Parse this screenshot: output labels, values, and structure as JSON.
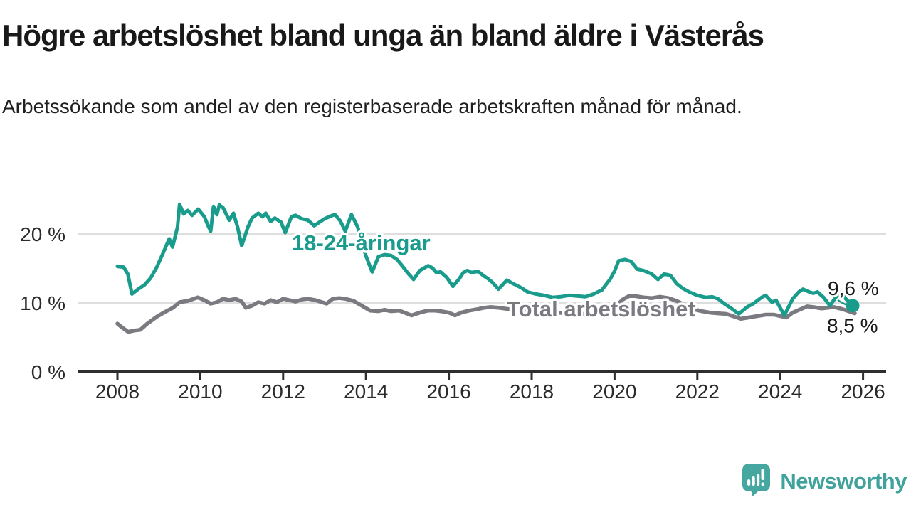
{
  "header": {
    "title": "Högre arbetslöshet bland unga än bland äldre i Västerås",
    "subtitle": "Arbetssökande som andel av den registerbaserade arbetskraften månad för månad."
  },
  "footer": {
    "brand": "Newsworthy"
  },
  "chart_data": {
    "type": "line",
    "title": "Högre arbetslöshet bland unga än bland äldre i Västerås",
    "subtitle": "Arbetssökande som andel av den registerbaserade arbetskraften månad för månad.",
    "unit": "%",
    "grid": "horizontal",
    "legend_position": "inline",
    "xlim": [
      2007.05,
      2026.55
    ],
    "ylim": [
      0,
      26
    ],
    "x_ticks": [
      "2008",
      "2010",
      "2012",
      "2014",
      "2016",
      "2018",
      "2020",
      "2022",
      "2024",
      "2026"
    ],
    "x_tick_values": [
      2008,
      2010,
      2012,
      2014,
      2016,
      2018,
      2020,
      2022,
      2024,
      2026
    ],
    "y_ticks": [
      {
        "value": 0,
        "label": "0 %"
      },
      {
        "value": 10,
        "label": "10 %"
      },
      {
        "value": 20,
        "label": "20 %"
      }
    ],
    "colors": {
      "youth": "#1a9c8c",
      "total": "#7b7a80",
      "grid": "#dedede",
      "axis": "#2e2e2e"
    },
    "series": [
      {
        "id": "youth",
        "name": "18-24-åringar",
        "color": "#1a9c8c",
        "end_label": "9,6 %",
        "end_dot": true,
        "points": [
          [
            2008.0,
            15.3
          ],
          [
            2008.15,
            15.2
          ],
          [
            2008.25,
            14.2
          ],
          [
            2008.35,
            11.3
          ],
          [
            2008.5,
            12.0
          ],
          [
            2008.65,
            12.6
          ],
          [
            2008.8,
            13.6
          ],
          [
            2008.95,
            15.2
          ],
          [
            2009.1,
            17.2
          ],
          [
            2009.25,
            19.3
          ],
          [
            2009.33,
            18.1
          ],
          [
            2009.45,
            21.0
          ],
          [
            2009.5,
            24.3
          ],
          [
            2009.6,
            22.9
          ],
          [
            2009.7,
            23.4
          ],
          [
            2009.8,
            22.7
          ],
          [
            2009.95,
            23.6
          ],
          [
            2010.1,
            22.5
          ],
          [
            2010.18,
            21.3
          ],
          [
            2010.25,
            20.4
          ],
          [
            2010.32,
            24.0
          ],
          [
            2010.4,
            22.8
          ],
          [
            2010.46,
            24.2
          ],
          [
            2010.55,
            23.8
          ],
          [
            2010.7,
            22.0
          ],
          [
            2010.8,
            23.0
          ],
          [
            2010.9,
            21.0
          ],
          [
            2011.0,
            18.3
          ],
          [
            2011.15,
            21.0
          ],
          [
            2011.25,
            22.3
          ],
          [
            2011.4,
            23.0
          ],
          [
            2011.5,
            22.5
          ],
          [
            2011.58,
            23.0
          ],
          [
            2011.7,
            21.8
          ],
          [
            2011.8,
            22.3
          ],
          [
            2011.95,
            21.7
          ],
          [
            2012.05,
            20.2
          ],
          [
            2012.2,
            22.5
          ],
          [
            2012.3,
            22.7
          ],
          [
            2012.45,
            22.2
          ],
          [
            2012.6,
            22.0
          ],
          [
            2012.75,
            21.2
          ],
          [
            2012.9,
            21.8
          ],
          [
            2013.0,
            22.2
          ],
          [
            2013.15,
            22.6
          ],
          [
            2013.25,
            22.8
          ],
          [
            2013.38,
            21.9
          ],
          [
            2013.5,
            20.4
          ],
          [
            2013.65,
            22.8
          ],
          [
            2013.8,
            21.0
          ],
          [
            2014.0,
            16.8
          ],
          [
            2014.15,
            14.5
          ],
          [
            2014.3,
            16.7
          ],
          [
            2014.45,
            17.0
          ],
          [
            2014.6,
            16.9
          ],
          [
            2014.75,
            16.3
          ],
          [
            2014.9,
            15.2
          ],
          [
            2015.0,
            14.4
          ],
          [
            2015.15,
            13.4
          ],
          [
            2015.3,
            14.7
          ],
          [
            2015.5,
            15.4
          ],
          [
            2015.6,
            15.1
          ],
          [
            2015.7,
            14.4
          ],
          [
            2015.8,
            14.5
          ],
          [
            2015.95,
            13.7
          ],
          [
            2016.1,
            12.4
          ],
          [
            2016.25,
            13.5
          ],
          [
            2016.35,
            14.4
          ],
          [
            2016.45,
            14.7
          ],
          [
            2016.55,
            14.4
          ],
          [
            2016.7,
            14.6
          ],
          [
            2016.85,
            13.9
          ],
          [
            2016.95,
            13.5
          ],
          [
            2017.05,
            13.0
          ],
          [
            2017.2,
            12.0
          ],
          [
            2017.4,
            13.3
          ],
          [
            2017.55,
            12.8
          ],
          [
            2017.75,
            12.2
          ],
          [
            2017.9,
            11.6
          ],
          [
            2018.1,
            11.3
          ],
          [
            2018.3,
            11.1
          ],
          [
            2018.5,
            10.8
          ],
          [
            2018.7,
            10.9
          ],
          [
            2018.9,
            11.1
          ],
          [
            2019.1,
            11.0
          ],
          [
            2019.3,
            10.9
          ],
          [
            2019.5,
            11.3
          ],
          [
            2019.7,
            11.9
          ],
          [
            2019.8,
            12.7
          ],
          [
            2019.9,
            13.5
          ],
          [
            2020.0,
            14.6
          ],
          [
            2020.1,
            16.1
          ],
          [
            2020.25,
            16.3
          ],
          [
            2020.4,
            16.0
          ],
          [
            2020.55,
            14.9
          ],
          [
            2020.7,
            14.7
          ],
          [
            2020.9,
            14.2
          ],
          [
            2021.05,
            13.4
          ],
          [
            2021.2,
            14.2
          ],
          [
            2021.35,
            14.0
          ],
          [
            2021.5,
            12.8
          ],
          [
            2021.65,
            12.1
          ],
          [
            2021.8,
            11.6
          ],
          [
            2022.0,
            11.1
          ],
          [
            2022.2,
            10.8
          ],
          [
            2022.35,
            10.9
          ],
          [
            2022.5,
            10.6
          ],
          [
            2022.65,
            9.9
          ],
          [
            2022.8,
            9.3
          ],
          [
            2023.0,
            8.4
          ],
          [
            2023.2,
            9.4
          ],
          [
            2023.35,
            9.9
          ],
          [
            2023.55,
            10.8
          ],
          [
            2023.65,
            11.1
          ],
          [
            2023.8,
            10.1
          ],
          [
            2023.9,
            10.4
          ],
          [
            2024.1,
            8.2
          ],
          [
            2024.3,
            10.6
          ],
          [
            2024.45,
            11.6
          ],
          [
            2024.55,
            12.0
          ],
          [
            2024.7,
            11.6
          ],
          [
            2024.8,
            11.4
          ],
          [
            2024.9,
            11.6
          ],
          [
            2025.05,
            10.8
          ],
          [
            2025.2,
            9.6
          ],
          [
            2025.35,
            10.9
          ],
          [
            2025.45,
            11.5
          ],
          [
            2025.6,
            10.5
          ],
          [
            2025.75,
            9.6
          ]
        ]
      },
      {
        "id": "total",
        "name": "Total arbetslöshet",
        "color": "#7b7a80",
        "end_label": "8,5 %",
        "end_dot": false,
        "points": [
          [
            2008.0,
            7.0
          ],
          [
            2008.1,
            6.5
          ],
          [
            2008.26,
            5.8
          ],
          [
            2008.4,
            6.0
          ],
          [
            2008.55,
            6.1
          ],
          [
            2008.72,
            7.0
          ],
          [
            2008.95,
            8.0
          ],
          [
            2009.12,
            8.6
          ],
          [
            2009.34,
            9.3
          ],
          [
            2009.5,
            10.1
          ],
          [
            2009.7,
            10.3
          ],
          [
            2009.94,
            10.8
          ],
          [
            2010.1,
            10.4
          ],
          [
            2010.25,
            9.9
          ],
          [
            2010.4,
            10.1
          ],
          [
            2010.55,
            10.6
          ],
          [
            2010.7,
            10.4
          ],
          [
            2010.85,
            10.6
          ],
          [
            2011.0,
            10.2
          ],
          [
            2011.1,
            9.3
          ],
          [
            2011.25,
            9.6
          ],
          [
            2011.4,
            10.1
          ],
          [
            2011.55,
            9.9
          ],
          [
            2011.7,
            10.4
          ],
          [
            2011.85,
            10.1
          ],
          [
            2012.0,
            10.6
          ],
          [
            2012.15,
            10.4
          ],
          [
            2012.3,
            10.2
          ],
          [
            2012.45,
            10.5
          ],
          [
            2012.6,
            10.6
          ],
          [
            2012.78,
            10.4
          ],
          [
            2013.05,
            9.9
          ],
          [
            2013.2,
            10.6
          ],
          [
            2013.35,
            10.7
          ],
          [
            2013.5,
            10.6
          ],
          [
            2013.7,
            10.3
          ],
          [
            2013.9,
            9.6
          ],
          [
            2014.1,
            8.9
          ],
          [
            2014.3,
            8.8
          ],
          [
            2014.45,
            9.0
          ],
          [
            2014.6,
            8.8
          ],
          [
            2014.8,
            8.9
          ],
          [
            2015.1,
            8.2
          ],
          [
            2015.3,
            8.6
          ],
          [
            2015.5,
            8.9
          ],
          [
            2015.65,
            8.9
          ],
          [
            2015.8,
            8.8
          ],
          [
            2016.0,
            8.6
          ],
          [
            2016.15,
            8.2
          ],
          [
            2016.3,
            8.6
          ],
          [
            2016.5,
            8.9
          ],
          [
            2016.7,
            9.1
          ],
          [
            2016.85,
            9.3
          ],
          [
            2017.0,
            9.4
          ],
          [
            2017.2,
            9.3
          ],
          [
            2017.45,
            9.1
          ],
          [
            2017.7,
            9.0
          ],
          [
            2018.0,
            8.9
          ],
          [
            2018.3,
            8.7
          ],
          [
            2018.6,
            8.6
          ],
          [
            2018.9,
            8.5
          ],
          [
            2019.2,
            8.4
          ],
          [
            2019.5,
            8.5
          ],
          [
            2019.8,
            8.8
          ],
          [
            2020.0,
            9.3
          ],
          [
            2020.2,
            10.5
          ],
          [
            2020.35,
            11.0
          ],
          [
            2020.5,
            11.0
          ],
          [
            2020.7,
            10.8
          ],
          [
            2020.9,
            10.7
          ],
          [
            2021.1,
            10.9
          ],
          [
            2021.3,
            10.7
          ],
          [
            2021.5,
            10.3
          ],
          [
            2021.7,
            9.7
          ],
          [
            2021.9,
            9.1
          ],
          [
            2022.1,
            8.8
          ],
          [
            2022.3,
            8.6
          ],
          [
            2022.5,
            8.5
          ],
          [
            2022.7,
            8.4
          ],
          [
            2022.9,
            8.0
          ],
          [
            2023.05,
            7.7
          ],
          [
            2023.25,
            7.9
          ],
          [
            2023.45,
            8.1
          ],
          [
            2023.65,
            8.3
          ],
          [
            2023.85,
            8.3
          ],
          [
            2024.0,
            8.1
          ],
          [
            2024.15,
            7.9
          ],
          [
            2024.3,
            8.6
          ],
          [
            2024.5,
            9.1
          ],
          [
            2024.65,
            9.5
          ],
          [
            2024.8,
            9.4
          ],
          [
            2025.0,
            9.2
          ],
          [
            2025.15,
            9.3
          ],
          [
            2025.3,
            9.4
          ],
          [
            2025.5,
            9.1
          ],
          [
            2025.65,
            8.8
          ],
          [
            2025.8,
            8.5
          ]
        ]
      }
    ]
  }
}
